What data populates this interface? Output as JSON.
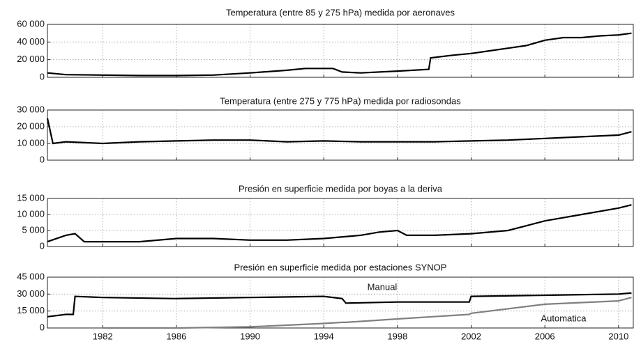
{
  "chart_data": [
    {
      "type": "line",
      "title": "Temperatura (entre 85 y 275 hPa) medida por aeronaves",
      "x": [
        1979,
        1980,
        1982,
        1984,
        1986,
        1988,
        1990,
        1992,
        1993,
        1994.5,
        1995,
        1996,
        1998,
        1999.7,
        1999.8,
        2001,
        2002,
        2003,
        2004,
        2005,
        2006,
        2007,
        2008,
        2009,
        2010,
        2010.7
      ],
      "values": [
        5000,
        3000,
        2500,
        2000,
        2000,
        2500,
        5000,
        8000,
        10000,
        10000,
        6000,
        5000,
        7000,
        9000,
        22000,
        25000,
        27000,
        30000,
        33000,
        36000,
        42000,
        45000,
        45000,
        47000,
        48000,
        50000
      ],
      "color": "#000000",
      "xlim": [
        1979,
        2010.8
      ],
      "ylim": [
        0,
        60000
      ],
      "yticks": [
        0,
        {
          "value": 20000,
          "label": "20 000"
        },
        {
          "value": 40000,
          "label": "40 000"
        },
        {
          "value": 60000,
          "label": "60 000"
        }
      ],
      "grid": true
    },
    {
      "type": "line",
      "title": "Temperatura (entre 275 y 775 hPa) medida por radiosondas",
      "x": [
        1979,
        1979.3,
        1980,
        1982,
        1984,
        1986,
        1988,
        1990,
        1992,
        1994,
        1996,
        1998,
        2000,
        2002,
        2004,
        2006,
        2008,
        2010,
        2010.7
      ],
      "values": [
        25000,
        10000,
        11000,
        10000,
        11000,
        11500,
        12000,
        12000,
        11000,
        11500,
        11000,
        11000,
        11000,
        11500,
        12000,
        13000,
        14000,
        15000,
        17000
      ],
      "color": "#000000",
      "xlim": [
        1979,
        2010.8
      ],
      "ylim": [
        0,
        30000
      ],
      "yticks": [
        0,
        {
          "value": 10000,
          "label": "10 000"
        },
        {
          "value": 20000,
          "label": "20 000"
        },
        {
          "value": 30000,
          "label": "30 000"
        }
      ],
      "grid": true
    },
    {
      "type": "line",
      "title": "Presión en superficie medida por boyas a la deriva",
      "x": [
        1979,
        1980,
        1980.5,
        1981,
        1982,
        1984,
        1986,
        1988,
        1990,
        1992,
        1994,
        1996,
        1997,
        1998,
        1998.5,
        2000,
        2002,
        2004,
        2006,
        2008,
        2010,
        2010.7
      ],
      "values": [
        1500,
        3500,
        4000,
        1500,
        1500,
        1500,
        2500,
        2500,
        2000,
        2000,
        2500,
        3500,
        4500,
        5000,
        3500,
        3500,
        4000,
        5000,
        8000,
        10000,
        12000,
        13000
      ],
      "color": "#000000",
      "xlim": [
        1979,
        2010.8
      ],
      "ylim": [
        0,
        15000
      ],
      "yticks": [
        0,
        {
          "value": 5000,
          "label": "5 000"
        },
        {
          "value": 10000,
          "label": "10 000"
        },
        {
          "value": 15000,
          "label": "15 000"
        }
      ],
      "grid": true
    },
    {
      "type": "line",
      "title": "Presión en superficie medida por estaciones SYNOP",
      "x": [
        1979,
        1980,
        1980.4,
        1980.5,
        1982,
        1986,
        1990,
        1994,
        1995,
        1995.2,
        1998,
        2001.9,
        2002,
        2006,
        2010,
        2010.7
      ],
      "series": [
        {
          "name": "Manual",
          "color": "#000000",
          "values": [
            10000,
            12000,
            12000,
            28000,
            27000,
            26000,
            27000,
            28000,
            26000,
            22000,
            23000,
            23000,
            28000,
            29000,
            30000,
            31000
          ]
        },
        {
          "name": "Automatica",
          "color": "#808080",
          "values": [
            null,
            null,
            null,
            null,
            0,
            0,
            1000,
            4000,
            5000,
            5000,
            8000,
            12000,
            13000,
            21000,
            24000,
            27000
          ]
        }
      ],
      "xlim": [
        1979,
        2010.8
      ],
      "ylim": [
        0,
        45000
      ],
      "xticks": [
        1982,
        1986,
        1990,
        1994,
        1998,
        2002,
        2006,
        2010
      ],
      "yticks": [
        0,
        {
          "value": 15000,
          "label": "15 000"
        },
        {
          "value": 30000,
          "label": "30 000"
        },
        {
          "value": 45000,
          "label": "45 000"
        }
      ],
      "grid": true
    }
  ]
}
